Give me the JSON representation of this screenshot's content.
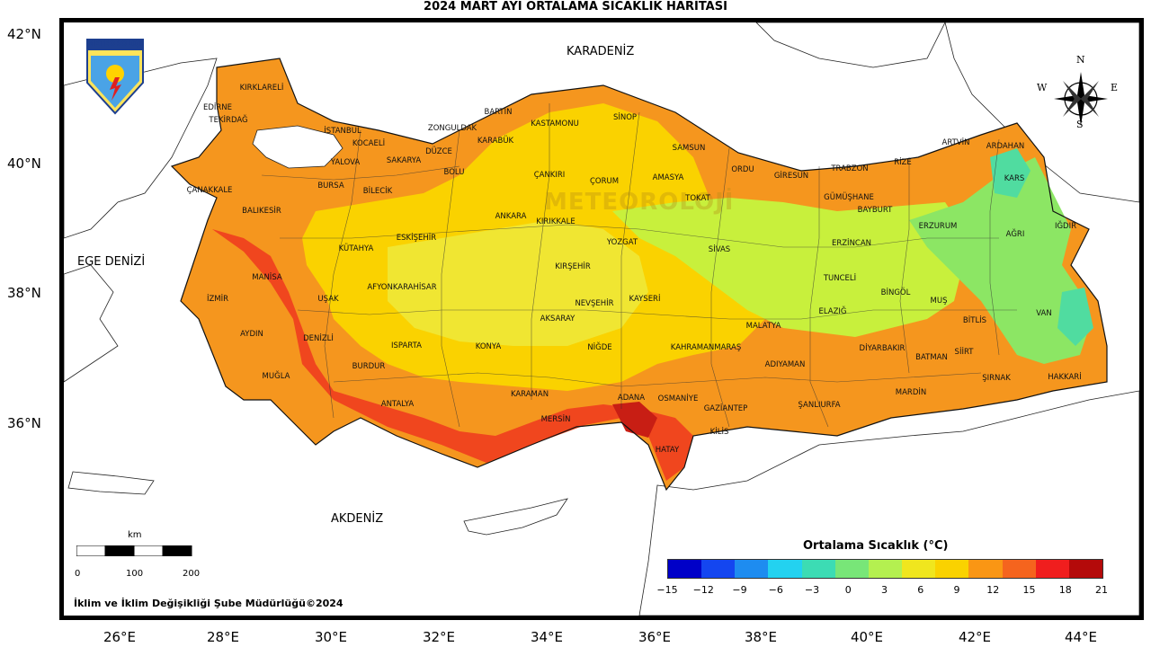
{
  "title": "2024 MART AYI ORTALAMA SICAKLIK HARİTASI",
  "logo_text": "METEOROLOJİ",
  "watermark": "METEOROLOJİ",
  "latitudes": [
    "42°N",
    "40°N",
    "38°N",
    "36°N"
  ],
  "longitudes": [
    "26°E",
    "28°E",
    "30°E",
    "32°E",
    "34°E",
    "36°E",
    "38°E",
    "40°E",
    "42°E",
    "44°E"
  ],
  "seas": {
    "black_sea": "KARADENİZ",
    "aegean": "EGE DENİZİ",
    "mediterranean": "AKDENİZ"
  },
  "compass": {
    "n": "N",
    "s": "S",
    "e": "E",
    "w": "W"
  },
  "scale": {
    "unit": "km",
    "labels": [
      "0",
      "100",
      "200"
    ]
  },
  "credit": "İklim ve İklim Değişikliği Şube Müdürlüğü©2024",
  "legend": {
    "title": "Ortalama Sıcaklık (°C)",
    "ticks": [
      "−15",
      "−12",
      "−9",
      "−6",
      "−3",
      "0",
      "3",
      "6",
      "9",
      "12",
      "15",
      "18",
      "21"
    ],
    "colors": [
      "#0000c8",
      "#1446f0",
      "#1e8cf0",
      "#23d2f0",
      "#3cdcb4",
      "#78e678",
      "#b4f050",
      "#f0e61e",
      "#fad200",
      "#fa9614",
      "#f5641e",
      "#f01e1e",
      "#b40a0a"
    ]
  },
  "provinces": [
    "KIRKLARELİ",
    "EDİRNE",
    "TEKİRDAĞ",
    "İSTANBUL",
    "KOCAELİ",
    "YALOVA",
    "SAKARYA",
    "DÜZCE",
    "ZONGULDAK",
    "BARTIN",
    "KARABÜK",
    "KASTAMONU",
    "SİNOP",
    "SAMSUN",
    "ORDU",
    "GİRESUN",
    "TRABZON",
    "RİZE",
    "ARTVİN",
    "ARDAHAN",
    "KARS",
    "IĞDIR",
    "AĞRI",
    "ERZURUM",
    "BAYBURT",
    "GÜMÜŞHANE",
    "ERZİNCAN",
    "TUNCELİ",
    "BİNGÖL",
    "MUŞ",
    "BİTLİS",
    "VAN",
    "HAKKARİ",
    "ŞIRNAK",
    "SİİRT",
    "BATMAN",
    "MARDİN",
    "DİYARBAKIR",
    "ELAZIĞ",
    "MALATYA",
    "ADIYAMAN",
    "ŞANLIURFA",
    "GAZİANTEP",
    "KİLİS",
    "HATAY",
    "OSMANİYE",
    "ADANA",
    "KAHRAMANMARAŞ",
    "MERSİN",
    "KARAMAN",
    "ANTALYA",
    "BURDUR",
    "ISPARTA",
    "MUĞLA",
    "AYDIN",
    "DENİZLİ",
    "İZMİR",
    "MANİSA",
    "UŞAK",
    "KÜTAHYA",
    "AFYONKARAHİSAR",
    "ESKİŞEHİR",
    "BİLECİK",
    "BURSA",
    "BALIKESİR",
    "ÇANAKKALE",
    "BOLU",
    "ANKARA",
    "ÇANKIRI",
    "ÇORUM",
    "AMASYA",
    "TOKAT",
    "YOZGAT",
    "KIRIKKALE",
    "KIRŞEHİR",
    "NEVŞEHİR",
    "KAYSERİ",
    "SİVAS",
    "AKSARAY",
    "NİĞDE",
    "KONYA"
  ]
}
